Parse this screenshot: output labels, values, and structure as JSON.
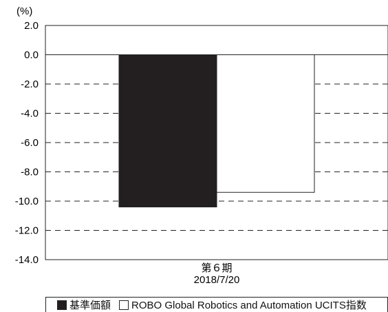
{
  "chart_data": {
    "type": "bar",
    "unit_label": "(%)",
    "categories": [
      {
        "line1": "第６期",
        "line2": "2018/7/20"
      }
    ],
    "series": [
      {
        "name": "基準価額",
        "values": [
          -10.4
        ],
        "color": "#231f20"
      },
      {
        "name": "ROBO Global Robotics and Automation UCITS指数",
        "values": [
          -9.4
        ],
        "color": "#ffffff"
      }
    ],
    "ylim": [
      -14.0,
      2.0
    ],
    "ytick_labels": [
      "2.0",
      "0.0",
      "-2.0",
      "-4.0",
      "-6.0",
      "-8.0",
      "-10.0",
      "-12.0",
      "-14.0"
    ],
    "grid": "dashed horizontal",
    "legend_position": "bottom"
  }
}
